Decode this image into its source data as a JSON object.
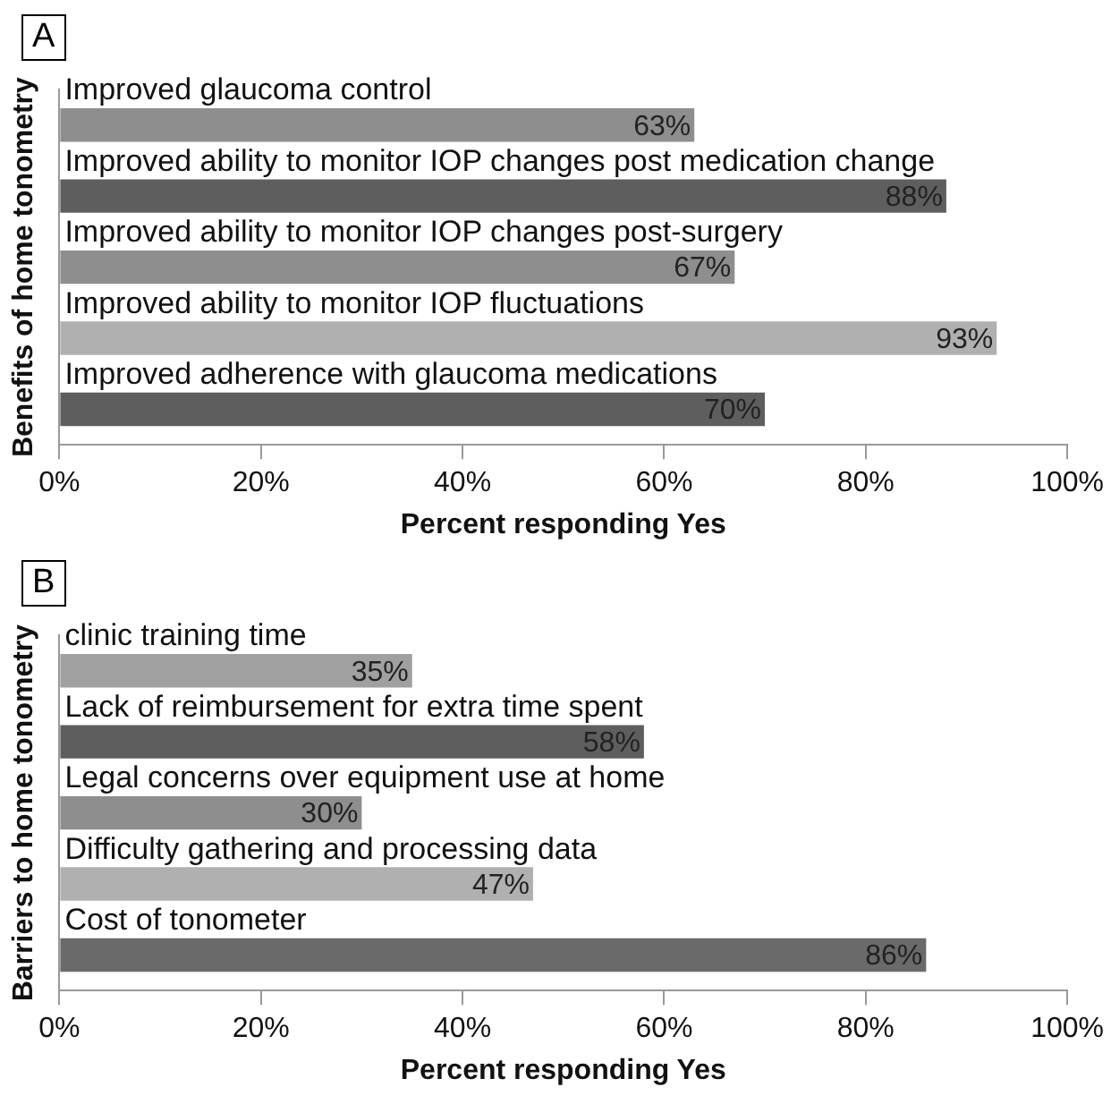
{
  "chart_data": [
    {
      "type": "bar",
      "orientation": "horizontal",
      "title": "A",
      "categories": [
        "Improved glaucoma control",
        "Improved ability to monitor IOP changes post medication change",
        "Improved ability to monitor IOP changes post-surgery",
        "Improved ability to monitor IOP fluctuations",
        "Improved adherence with glaucoma medications"
      ],
      "values": [
        63,
        88,
        67,
        93,
        70
      ],
      "colors": [
        "#8e8e8e",
        "#5e5e5e",
        "#8e8e8e",
        "#b0b0b0",
        "#5e5e5e"
      ],
      "value_labels": [
        "63%",
        "88%",
        "67%",
        "93%",
        "70%"
      ],
      "xlim": [
        0,
        100
      ],
      "xticks": [
        {
          "value": 0,
          "label": "0%"
        },
        {
          "value": 20,
          "label": "20%"
        },
        {
          "value": 40,
          "label": "40%"
        },
        {
          "value": 60,
          "label": "60%"
        },
        {
          "value": 80,
          "label": "80%"
        },
        {
          "value": 100,
          "label": "100%"
        }
      ],
      "xlabel": "Percent responding Yes",
      "ylabel": "Benefits of home tonometry",
      "grid": false,
      "legend": false
    },
    {
      "type": "bar",
      "orientation": "horizontal",
      "title": "B",
      "categories": [
        "clinic training time",
        "Lack of reimbursement for extra time spent",
        "Legal concerns over equipment use at home",
        "Difficulty gathering and processing data",
        "Cost of tonometer"
      ],
      "values": [
        35,
        58,
        30,
        47,
        86
      ],
      "colors": [
        "#a0a0a0",
        "#5e5e5e",
        "#8e8e8e",
        "#b0b0b0",
        "#6a6a6a"
      ],
      "value_labels": [
        "35%",
        "58%",
        "30%",
        "47%",
        "86%"
      ],
      "xlim": [
        0,
        100
      ],
      "xticks": [
        {
          "value": 0,
          "label": "0%"
        },
        {
          "value": 20,
          "label": "20%"
        },
        {
          "value": 40,
          "label": "40%"
        },
        {
          "value": 60,
          "label": "60%"
        },
        {
          "value": 80,
          "label": "80%"
        },
        {
          "value": 100,
          "label": "100%"
        }
      ],
      "xlabel": "Percent responding Yes",
      "ylabel": "Barriers to home tonometry",
      "grid": false,
      "legend": false
    }
  ]
}
